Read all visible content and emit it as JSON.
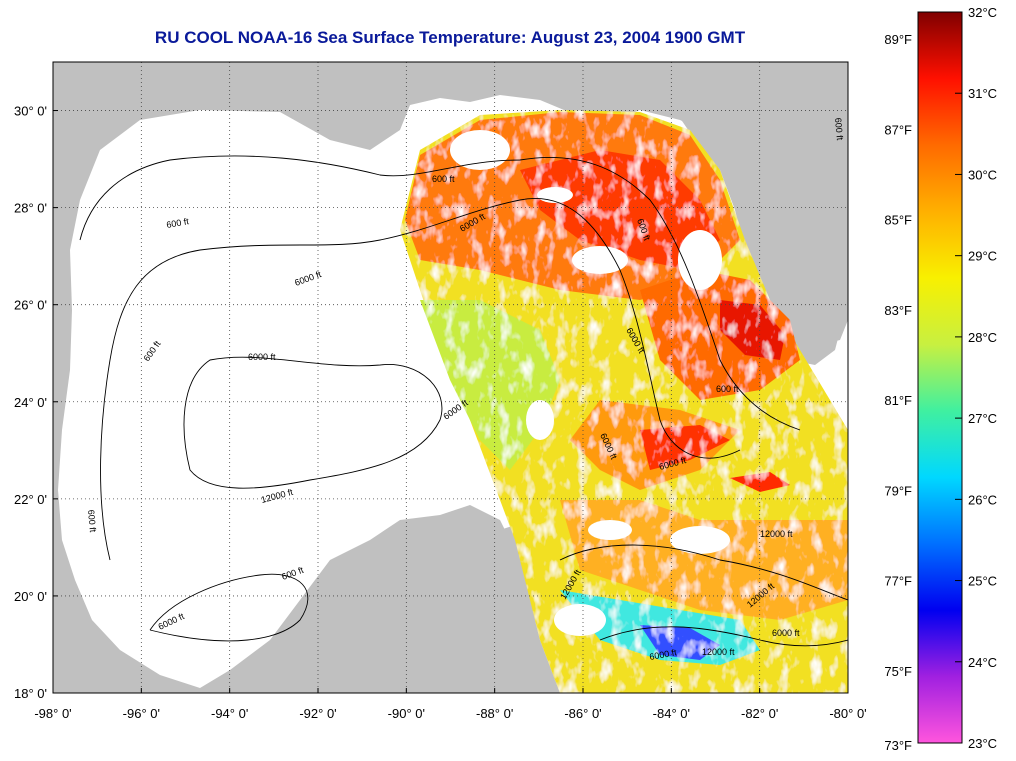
{
  "title": "RU COOL  NOAA-16  Sea Surface Temperature:  August 23, 2004 1900 GMT",
  "map": {
    "lon_ticks": [
      "-98° 0'",
      "-96° 0'",
      "-94° 0'",
      "-92° 0'",
      "-90° 0'",
      "-88° 0'",
      "-86° 0'",
      "-84° 0'",
      "-82° 0'",
      "-80° 0'"
    ],
    "lat_ticks": [
      "30° 0'",
      "28° 0'",
      "26° 0'",
      "24° 0'",
      "22° 0'",
      "20° 0'",
      "18° 0'"
    ],
    "lon_range": [
      -98,
      -80
    ],
    "lat_range": [
      18,
      31
    ],
    "contour_labels": [
      "600 ft",
      "6000 ft",
      "600 ft",
      "6000 ft",
      "600 ft",
      "6000 ft",
      "12000 ft",
      "6000 ft",
      "600 ft",
      "6000 ft",
      "6000 ft",
      "600 ft",
      "6000 ft",
      "12000 ft",
      "12000 ft",
      "6000 ft",
      "600 ft",
      "6000 ft",
      "600 ft",
      "12000 ft",
      "6000 ft",
      "12000 ft",
      "600 ft"
    ],
    "colors": {
      "land": "#c0c0c0",
      "ocean_nodata": "#ffffff",
      "grid": "#444444"
    }
  },
  "colorbar": {
    "f_labels": [
      "89°F",
      "87°F",
      "85°F",
      "83°F",
      "81°F",
      "79°F",
      "77°F",
      "75°F",
      "73°F"
    ],
    "c_labels": [
      "32°C",
      "31°C",
      "30°C",
      "29°C",
      "28°C",
      "27°C",
      "26°C",
      "25°C",
      "24°C",
      "23°C"
    ],
    "range_c": [
      23,
      32
    ],
    "stops": [
      "#ff55dd",
      "#a020e0",
      "#0000f0",
      "#0070ff",
      "#00d8ff",
      "#40f0a0",
      "#c8f040",
      "#f8f000",
      "#ffb000",
      "#ff6a00",
      "#ff1000",
      "#800000"
    ]
  }
}
